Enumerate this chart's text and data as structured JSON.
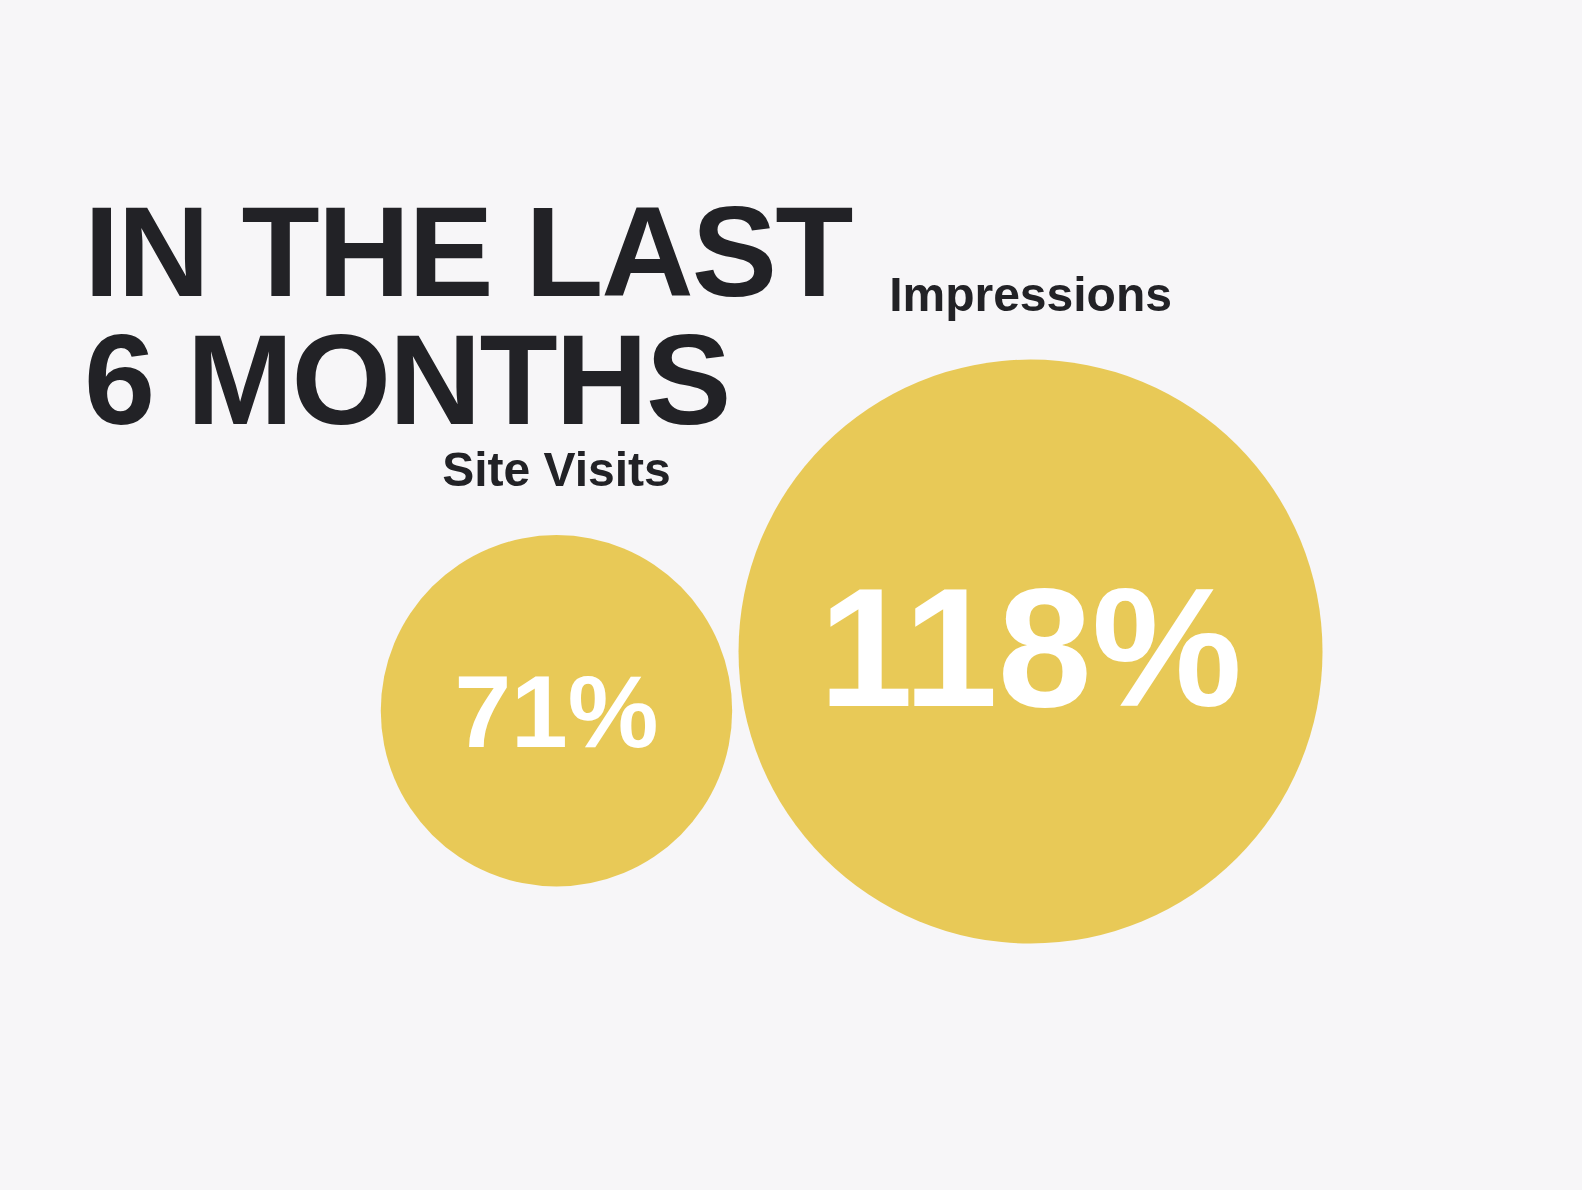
{
  "chart_data": {
    "type": "other",
    "title": "IN THE LAST\n6 MONTHS",
    "categories": [
      "Site Visits",
      "Impressions"
    ],
    "values": [
      71,
      118
    ],
    "value_labels": [
      "71%",
      "118%"
    ],
    "color": "#e8c957"
  }
}
